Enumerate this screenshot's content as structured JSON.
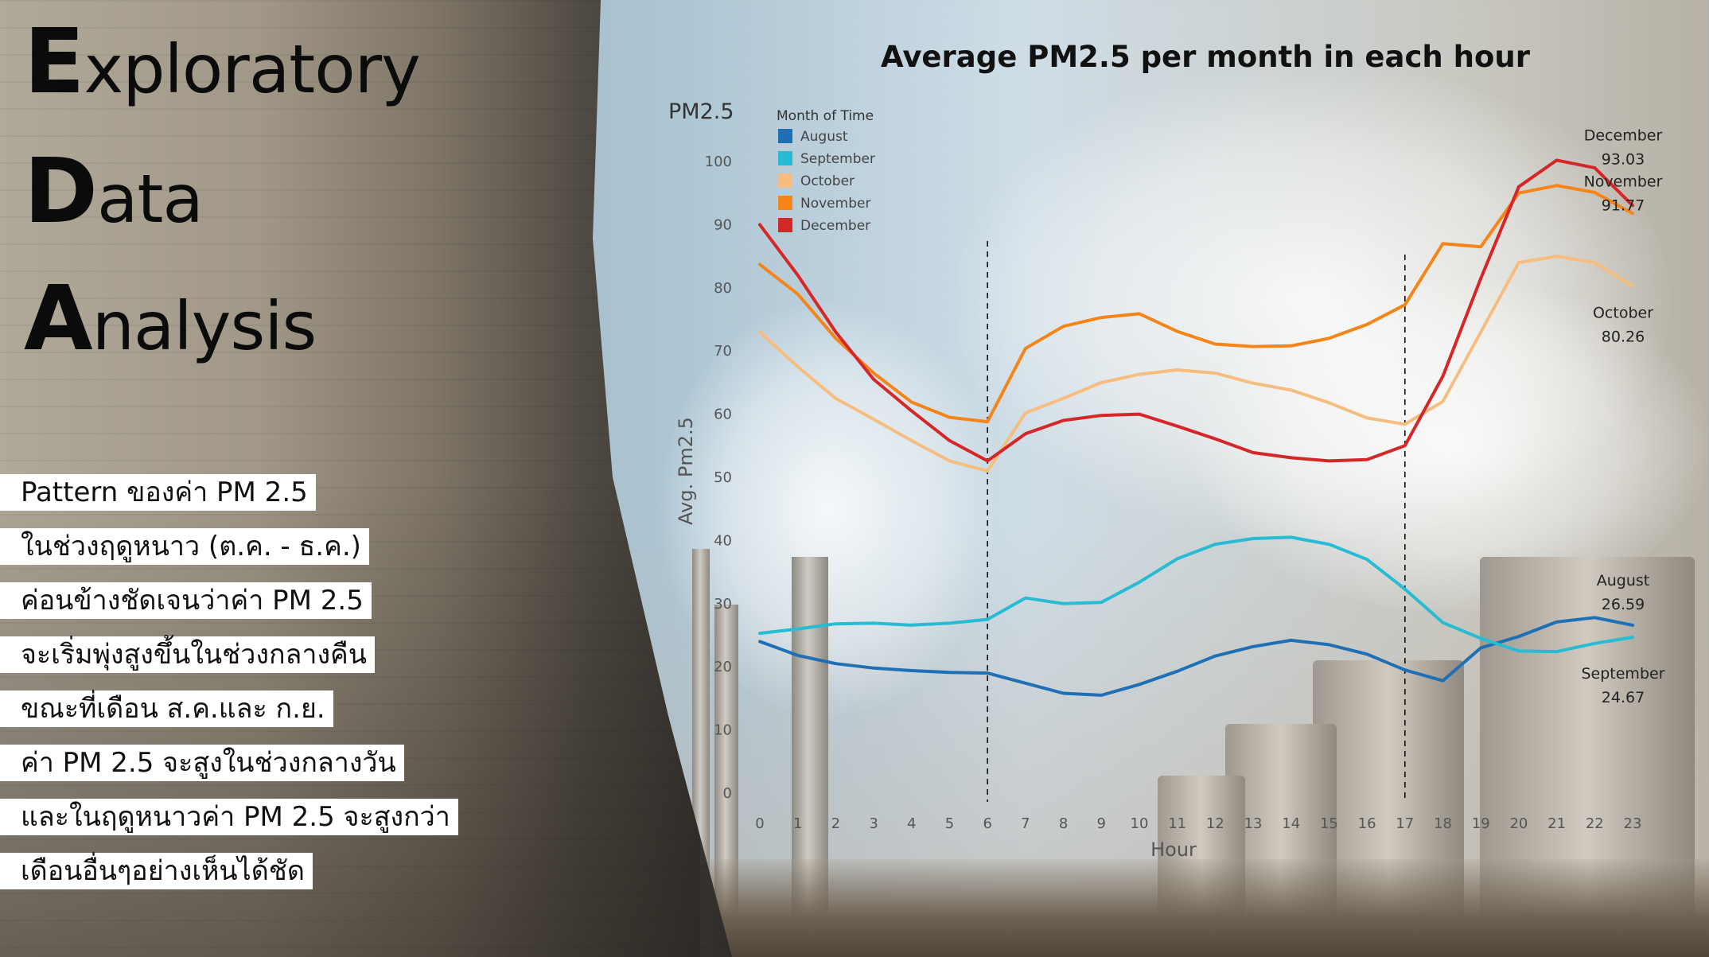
{
  "page": {
    "title_words": [
      {
        "cap": "E",
        "rest": "xploratory"
      },
      {
        "cap": "D",
        "rest": "ata"
      },
      {
        "cap": "A",
        "rest": "nalysis"
      }
    ],
    "notes": [
      "Pattern ของค่า PM 2.5",
      "ในช่วงฤดูหนาว (ต.ค. - ธ.ค.)",
      "ค่อนข้างชัดเจนว่าค่า PM 2.5",
      "จะเริ่มพุ่งสูงขึ้นในช่วงกลางคืน",
      "ขณะที่เดือน ส.ค.และ ก.ย.",
      "ค่า PM 2.5 จะสูงในช่วงกลางวัน",
      "และในฤดูหนาวค่า PM 2.5 จะสูงกว่า",
      "เดือนอื่นๆอย่างเห็นได้ชัด"
    ]
  },
  "chart_data": {
    "type": "line",
    "title": "Average PM2.5 per month in each hour",
    "panel_title": "PM2.5",
    "xlabel": "Hour",
    "ylabel": "Avg. Pm2.5",
    "xlim": [
      0,
      23
    ],
    "ylim": [
      0,
      100
    ],
    "yticks": [
      0,
      10,
      20,
      30,
      40,
      50,
      60,
      70,
      80,
      90,
      100
    ],
    "x": [
      0,
      1,
      2,
      3,
      4,
      5,
      6,
      7,
      8,
      9,
      10,
      11,
      12,
      13,
      14,
      15,
      16,
      17,
      18,
      19,
      20,
      21,
      22,
      23
    ],
    "legend_title": "Month of Time",
    "legend_position": "top-left",
    "grid": false,
    "reference_lines_x": [
      6,
      17
    ],
    "series": [
      {
        "name": "August",
        "color": "#1f6fb5",
        "values": [
          24.0,
          21.8,
          20.5,
          19.8,
          19.4,
          19.1,
          19.0,
          17.4,
          15.8,
          15.5,
          17.2,
          19.3,
          21.7,
          23.2,
          24.2,
          23.5,
          22.0,
          19.5,
          17.8,
          23.0,
          24.8,
          27.1,
          27.8,
          26.59
        ],
        "end_label": [
          "August",
          "26.59"
        ]
      },
      {
        "name": "September",
        "color": "#27bcd3",
        "values": [
          25.3,
          26.0,
          26.8,
          26.9,
          26.6,
          26.9,
          27.5,
          30.9,
          30.0,
          30.2,
          33.4,
          37.1,
          39.4,
          40.3,
          40.5,
          39.4,
          37.0,
          32.3,
          27.0,
          24.5,
          22.5,
          22.4,
          23.7,
          24.67
        ],
        "end_label": [
          "September",
          "24.67"
        ]
      },
      {
        "name": "October",
        "color": "#f7bd80",
        "values": [
          73.0,
          67.5,
          62.5,
          59.2,
          55.8,
          52.6,
          51.0,
          60.2,
          62.5,
          65.0,
          66.3,
          67.0,
          66.5,
          64.9,
          63.8,
          61.8,
          59.4,
          58.4,
          62.0,
          73.0,
          84.0,
          85.0,
          84.0,
          80.26
        ],
        "end_label": [
          "October",
          "80.26"
        ]
      },
      {
        "name": "November",
        "color": "#f58518",
        "values": [
          83.7,
          79.0,
          72.0,
          66.5,
          61.9,
          59.5,
          58.8,
          70.4,
          73.9,
          75.3,
          75.9,
          73.1,
          71.1,
          70.7,
          70.8,
          72.0,
          74.2,
          77.3,
          87.0,
          86.5,
          95.0,
          96.2,
          95.1,
          91.77
        ],
        "end_label": [
          "November",
          "91.77"
        ]
      },
      {
        "name": "December",
        "color": "#d62728",
        "values": [
          90.0,
          82.0,
          73.0,
          65.5,
          60.5,
          55.8,
          52.6,
          56.9,
          59.0,
          59.8,
          60.0,
          58.1,
          56.1,
          53.9,
          53.1,
          52.6,
          52.8,
          55.0,
          66.0,
          81.5,
          96.0,
          100.2,
          99.0,
          93.03
        ],
        "end_label": [
          "December",
          "93.03"
        ]
      }
    ]
  }
}
